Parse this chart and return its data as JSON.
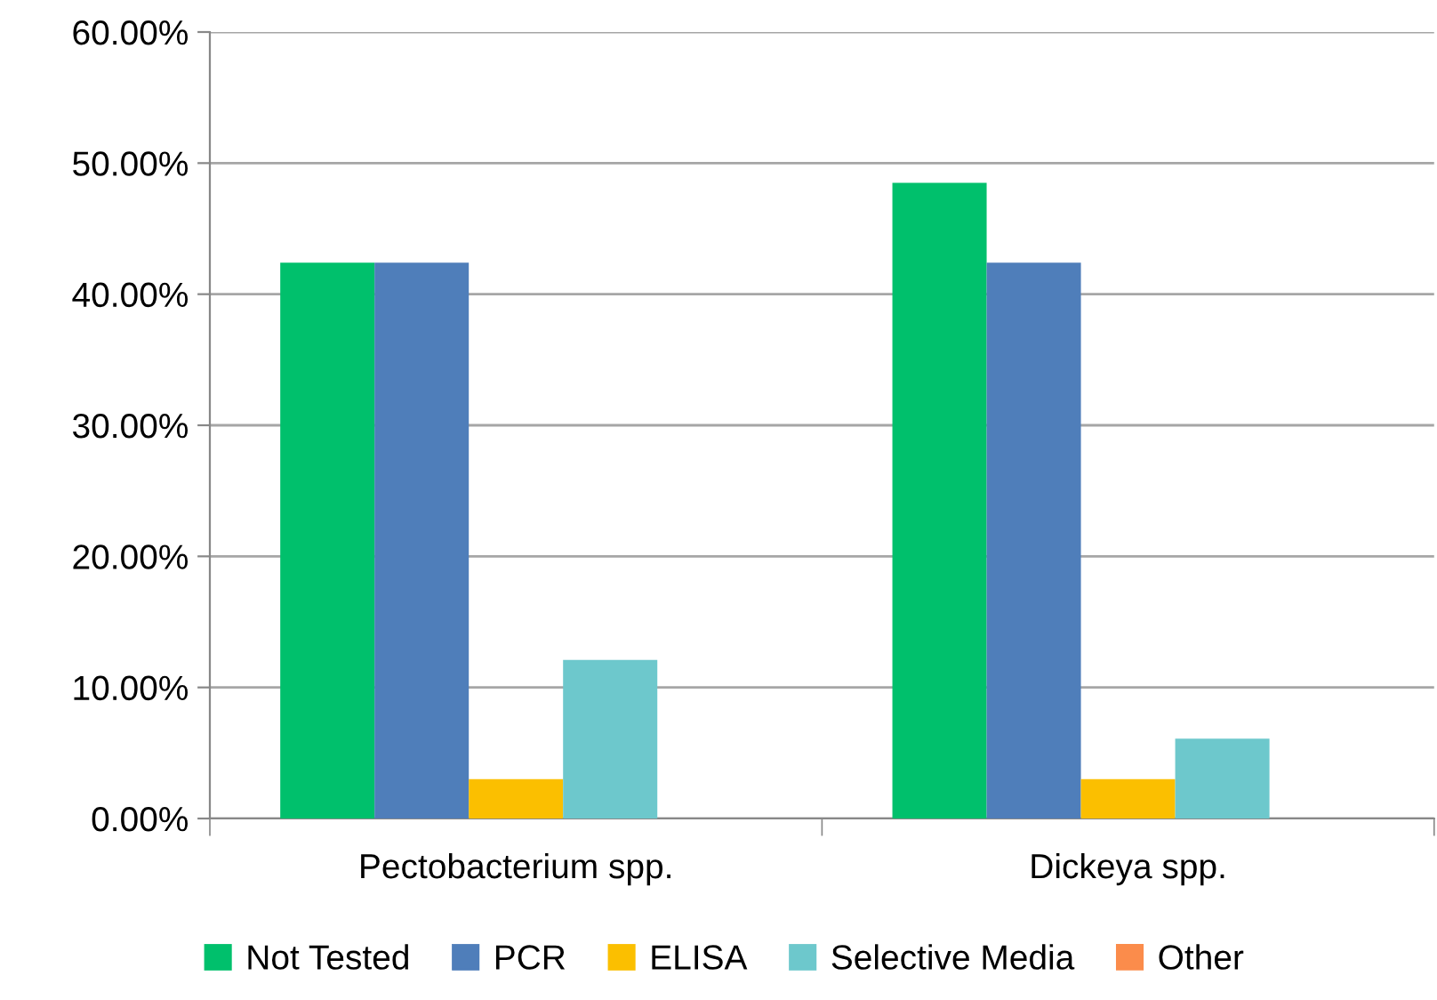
{
  "chart_data": {
    "type": "bar",
    "categories": [
      "Pectobacterium spp.",
      "Dickeya spp."
    ],
    "series": [
      {
        "name": "Not Tested",
        "color": "#00c06c",
        "values": [
          42.4,
          48.5
        ]
      },
      {
        "name": "PCR",
        "color": "#4f7eba",
        "values": [
          42.4,
          42.4
        ]
      },
      {
        "name": "ELISA",
        "color": "#fbbf00",
        "values": [
          3.0,
          3.0
        ]
      },
      {
        "name": "Selective Media",
        "color": "#6dc8cc",
        "values": [
          12.1,
          6.1
        ]
      },
      {
        "name": "Other",
        "color": "#fb8c4b",
        "values": [
          0,
          0
        ]
      }
    ],
    "ylim": [
      0,
      60
    ],
    "yticks": [
      {
        "value": 0,
        "label": "0.00%"
      },
      {
        "value": 10,
        "label": "10.00%"
      },
      {
        "value": 20,
        "label": "20.00%"
      },
      {
        "value": 30,
        "label": "30.00%"
      },
      {
        "value": 40,
        "label": "40.00%"
      },
      {
        "value": 50,
        "label": "50.00%"
      },
      {
        "value": 60,
        "label": "60.00%"
      }
    ],
    "grid": "y",
    "legend": "bottom"
  }
}
